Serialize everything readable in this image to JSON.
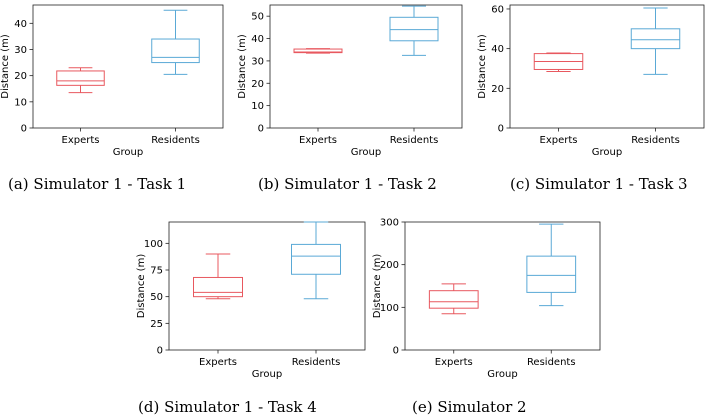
{
  "colors": {
    "experts": "#e8585f",
    "residents": "#5aa9d6"
  },
  "chart_data": [
    {
      "type": "box",
      "caption": "(a) Simulator 1 - Task 1",
      "xlabel": "Group",
      "ylabel": "Distance (m)",
      "ylim": [
        0,
        47
      ],
      "yticks": [
        0,
        10,
        20,
        30,
        40
      ],
      "categories": [
        "Experts",
        "Residents"
      ],
      "boxes": [
        {
          "name": "Experts",
          "whisker_low": 13.5,
          "q1": 16.3,
          "median": 18,
          "q3": 21.8,
          "whisker_high": 23
        },
        {
          "name": "Residents",
          "whisker_low": 20.5,
          "q1": 25,
          "median": 27,
          "q3": 34,
          "whisker_high": 45
        }
      ]
    },
    {
      "type": "box",
      "caption": "(b) Simulator 1 - Task 2",
      "xlabel": "Group",
      "ylabel": "Distance (m)",
      "ylim": [
        0,
        55
      ],
      "yticks": [
        0,
        10,
        20,
        30,
        40,
        50
      ],
      "categories": [
        "Experts",
        "Residents"
      ],
      "boxes": [
        {
          "name": "Experts",
          "whisker_low": 33.5,
          "q1": 33.7,
          "median": 34,
          "q3": 35.3,
          "whisker_high": 35.5
        },
        {
          "name": "Residents",
          "whisker_low": 32.5,
          "q1": 39,
          "median": 44,
          "q3": 49.5,
          "whisker_high": 54.5
        }
      ]
    },
    {
      "type": "box",
      "caption": "(c) Simulator 1 - Task 3",
      "xlabel": "Group",
      "ylabel": "Distance (m)",
      "ylim": [
        0,
        62
      ],
      "yticks": [
        0,
        20,
        40,
        60
      ],
      "categories": [
        "Experts",
        "Residents"
      ],
      "boxes": [
        {
          "name": "Experts",
          "whisker_low": 28.5,
          "q1": 29.5,
          "median": 33.5,
          "q3": 37.5,
          "whisker_high": 37.8
        },
        {
          "name": "Residents",
          "whisker_low": 27,
          "q1": 40,
          "median": 44.5,
          "q3": 50,
          "whisker_high": 60.5
        }
      ]
    },
    {
      "type": "box",
      "caption": "(d) Simulator 1 - Task 4",
      "xlabel": "Group",
      "ylabel": "Distance (m)",
      "ylim": [
        0,
        120
      ],
      "yticks": [
        0,
        25,
        50,
        75,
        100
      ],
      "categories": [
        "Experts",
        "Residents"
      ],
      "boxes": [
        {
          "name": "Experts",
          "whisker_low": 48,
          "q1": 50,
          "median": 54,
          "q3": 68,
          "whisker_high": 90
        },
        {
          "name": "Residents",
          "whisker_low": 48,
          "q1": 71,
          "median": 88,
          "q3": 99,
          "whisker_high": 120
        }
      ]
    },
    {
      "type": "box",
      "caption": "(e) Simulator 2",
      "xlabel": "Group",
      "ylabel": "Distance (m)",
      "ylim": [
        0,
        300
      ],
      "yticks": [
        0,
        100,
        200,
        300
      ],
      "categories": [
        "Experts",
        "Residents"
      ],
      "boxes": [
        {
          "name": "Experts",
          "whisker_low": 85,
          "q1": 98,
          "median": 113,
          "q3": 139,
          "whisker_high": 155
        },
        {
          "name": "Residents",
          "whisker_low": 104,
          "q1": 135,
          "median": 175,
          "q3": 220,
          "whisker_high": 295
        }
      ]
    }
  ]
}
